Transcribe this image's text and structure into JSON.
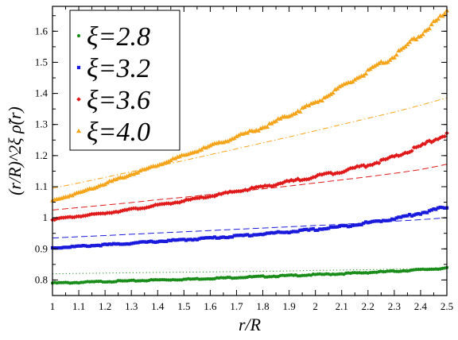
{
  "chart_data": {
    "type": "scatter",
    "xlabel": "r/R",
    "ylabel": "(r/R)^2ξ ρ̃(r)",
    "xlim": [
      1,
      2.5
    ],
    "ylim": [
      0.75,
      1.68
    ],
    "x_ticks": [
      1,
      1.1,
      1.2,
      1.3,
      1.4,
      1.5,
      1.6,
      1.7,
      1.8,
      1.9,
      2,
      2.1,
      2.2,
      2.3,
      2.4,
      2.5
    ],
    "x_tick_labels": [
      "1",
      "1.1",
      "1.2",
      "1.3",
      "1.4",
      "1.5",
      "1.6",
      "1.7",
      "1.8",
      "1.9",
      "2",
      "2.1",
      "2.2",
      "2.3",
      "2.4",
      "2.5"
    ],
    "y_ticks": [
      0.8,
      0.9,
      1.0,
      1.1,
      1.2,
      1.3,
      1.4,
      1.5,
      1.6
    ],
    "y_tick_labels": [
      "0.8",
      "0.9",
      "1",
      "1.1",
      "1.2",
      "1.3",
      "1.4",
      "1.5",
      "1.6"
    ],
    "legend_position": "top-left",
    "series": [
      {
        "name": "ξ=2.8",
        "marker": "circle",
        "color": "#1a8c1a",
        "x": [
          1.0,
          1.1,
          1.2,
          1.3,
          1.4,
          1.5,
          1.6,
          1.7,
          1.8,
          1.9,
          2.0,
          2.1,
          2.2,
          2.3,
          2.4,
          2.5
        ],
        "y": [
          0.79,
          0.792,
          0.795,
          0.797,
          0.8,
          0.802,
          0.805,
          0.808,
          0.811,
          0.814,
          0.817,
          0.82,
          0.824,
          0.828,
          0.833,
          0.838
        ],
        "fit": {
          "style": "dotted",
          "y": [
            0.82,
            0.821,
            0.822,
            0.823,
            0.824,
            0.825,
            0.826,
            0.827,
            0.828,
            0.829,
            0.831,
            0.832,
            0.833,
            0.835,
            0.836,
            0.838
          ]
        }
      },
      {
        "name": "ξ=3.2",
        "marker": "square",
        "color": "#1a1adc",
        "x": [
          1.0,
          1.1,
          1.2,
          1.3,
          1.4,
          1.5,
          1.6,
          1.7,
          1.8,
          1.9,
          2.0,
          2.1,
          2.2,
          2.3,
          2.4,
          2.5
        ],
        "y": [
          0.903,
          0.908,
          0.913,
          0.918,
          0.924,
          0.929,
          0.935,
          0.941,
          0.948,
          0.955,
          0.962,
          0.972,
          0.984,
          0.997,
          1.015,
          1.035
        ],
        "fit": {
          "style": "dashed",
          "y": [
            0.935,
            0.939,
            0.943,
            0.947,
            0.951,
            0.955,
            0.959,
            0.963,
            0.967,
            0.971,
            0.975,
            0.979,
            0.984,
            0.989,
            0.994,
            1.0
          ]
        }
      },
      {
        "name": "ξ=3.6",
        "marker": "diamond",
        "color": "#e01a1a",
        "x": [
          1.0,
          1.1,
          1.2,
          1.3,
          1.4,
          1.5,
          1.6,
          1.7,
          1.8,
          1.9,
          2.0,
          2.1,
          2.2,
          2.3,
          2.4,
          2.5
        ],
        "y": [
          0.995,
          1.005,
          1.015,
          1.027,
          1.04,
          1.054,
          1.069,
          1.085,
          1.1,
          1.116,
          1.133,
          1.15,
          1.17,
          1.195,
          1.23,
          1.27
        ],
        "fit": {
          "style": "dashed",
          "y": [
            1.025,
            1.033,
            1.041,
            1.049,
            1.058,
            1.066,
            1.075,
            1.084,
            1.093,
            1.102,
            1.112,
            1.122,
            1.132,
            1.143,
            1.155,
            1.172
          ]
        }
      },
      {
        "name": "ξ=4.0",
        "marker": "triangle",
        "color": "#f5a41a",
        "x": [
          1.0,
          1.1,
          1.2,
          1.3,
          1.4,
          1.5,
          1.6,
          1.7,
          1.8,
          1.9,
          2.0,
          2.1,
          2.2,
          2.3,
          2.4,
          2.5
        ],
        "y": [
          1.055,
          1.08,
          1.11,
          1.14,
          1.17,
          1.2,
          1.23,
          1.26,
          1.29,
          1.33,
          1.37,
          1.42,
          1.47,
          1.52,
          1.59,
          1.66
        ],
        "fit": {
          "style": "dashdot",
          "y": [
            1.095,
            1.112,
            1.13,
            1.148,
            1.166,
            1.184,
            1.203,
            1.222,
            1.241,
            1.26,
            1.28,
            1.3,
            1.32,
            1.34,
            1.362,
            1.386
          ]
        }
      }
    ]
  }
}
